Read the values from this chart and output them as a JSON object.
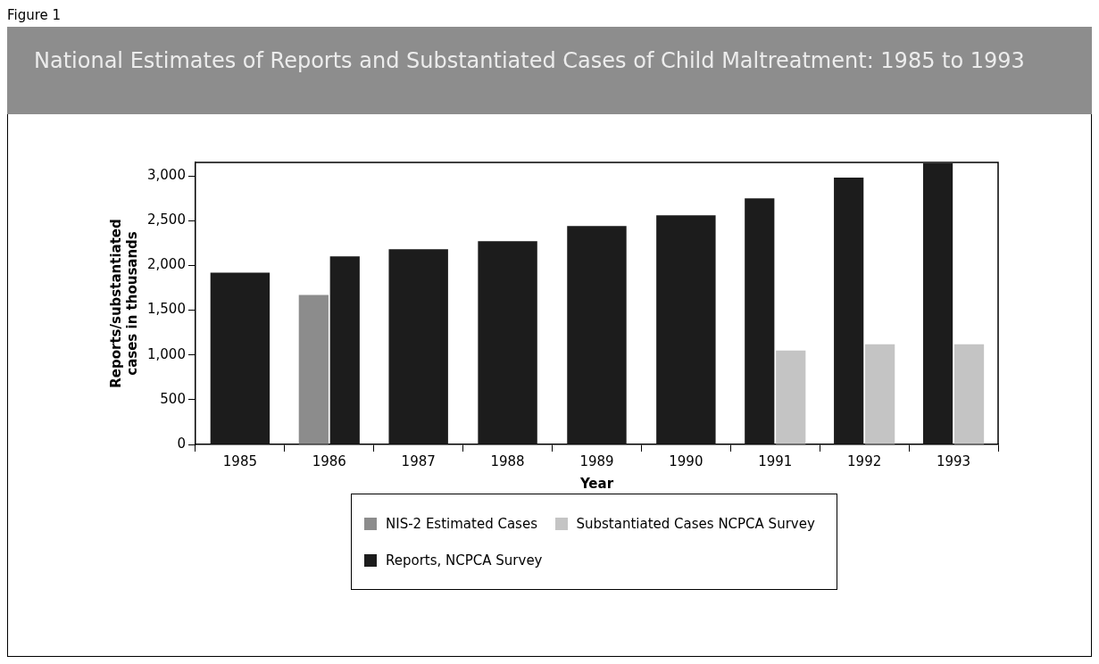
{
  "chart_data": {
    "type": "bar",
    "title": "National Estimates of Reports and Substantiated Cases of Child Maltreatment: 1985 to 1993",
    "annotations": [
      "Figure 1"
    ],
    "xlabel": "Year",
    "ylabel": "Reports/substantiated cases in thousands",
    "categories": [
      "1985",
      "1986",
      "1987",
      "1988",
      "1989",
      "1990",
      "1991",
      "1992",
      "1993"
    ],
    "series": [
      {
        "name": "NIS-2 Estimated Cases",
        "color": "#8c8c8c",
        "values": [
          null,
          1670,
          null,
          null,
          null,
          null,
          null,
          null,
          null
        ]
      },
      {
        "name": "Reports, NCPCA Survey",
        "color": "#1c1c1c",
        "values": [
          1920,
          2100,
          2180,
          2270,
          2440,
          2560,
          2750,
          2980,
          3140
        ]
      },
      {
        "name": "Substantiated Cases NCPCA Survey",
        "color": "#c4c4c4",
        "values": [
          null,
          null,
          null,
          null,
          null,
          null,
          1050,
          1120,
          1120
        ]
      }
    ],
    "ylim": [
      0,
      3150
    ],
    "yticks": [
      0,
      500,
      {
        "value": 1000,
        "label": "1,000"
      },
      {
        "value": 1500,
        "label": "1,500"
      },
      {
        "value": 2000,
        "label": "2,000"
      },
      {
        "value": 2500,
        "label": "2,500"
      },
      {
        "value": 3000,
        "label": "3,000"
      }
    ],
    "legend": "bottom"
  }
}
